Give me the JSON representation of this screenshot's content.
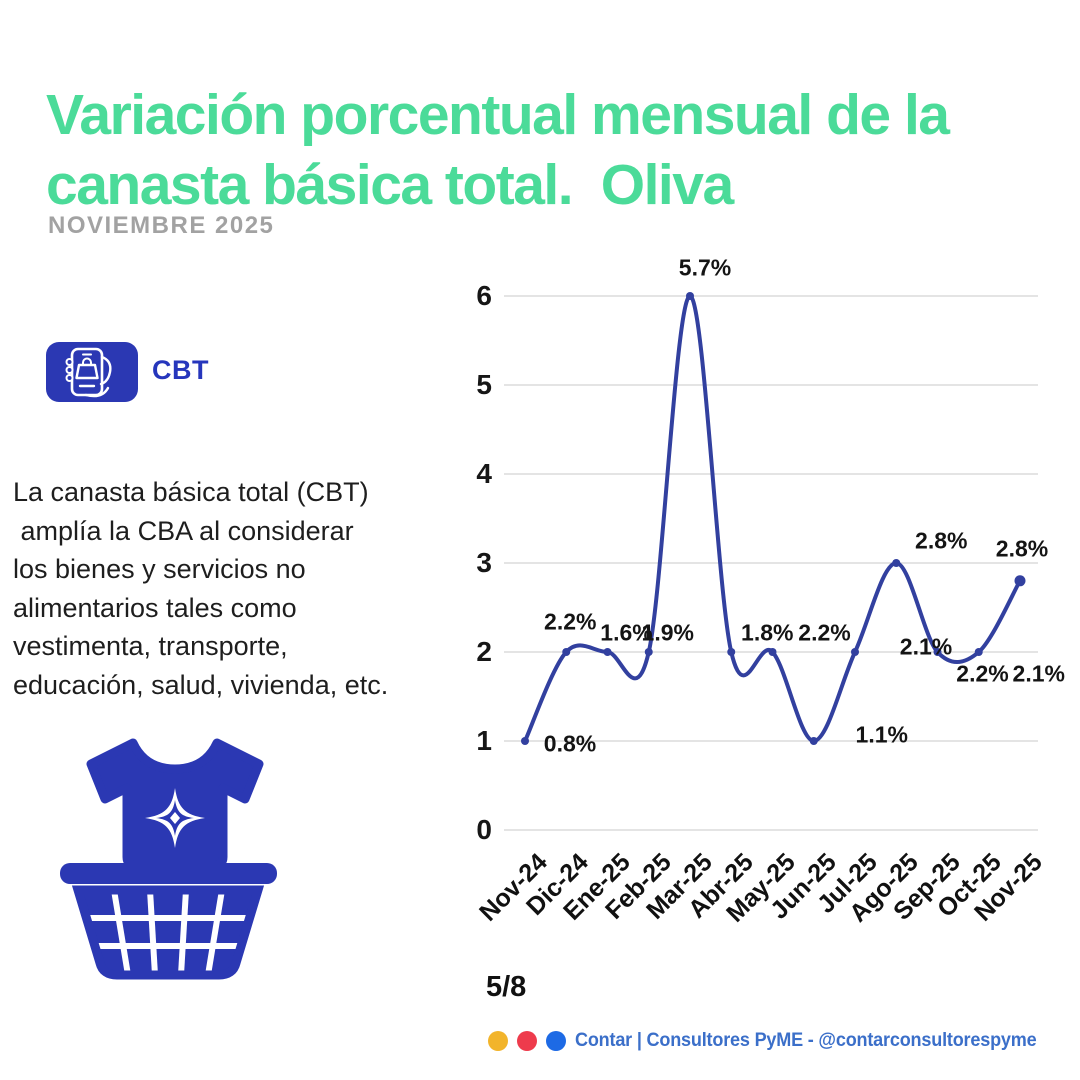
{
  "header": {
    "title": "Variación porcentual mensual de la\ncanasta básica total.  Oliva",
    "subtitle": "NOVIEMBRE 2025"
  },
  "cbt": {
    "label": "CBT",
    "description": "La canasta básica total (CBT)\n amplía la CBA al considerar\nlos bienes y servicios no\nalimentarios tales como\nvestimenta, transporte,\neducación, salud, vivienda, etc."
  },
  "footer": {
    "page_indicator": "5/8",
    "brand": "Contar | Consultores PyME - @contarconsultorespyme",
    "dot_colors": [
      "#F2B42B",
      "#EE3B4C",
      "#1D6AE5"
    ]
  },
  "colors": {
    "title_green": "#4BDB99",
    "subtitle_gray": "#A2A2A2",
    "icon_blue": "#2B38B3",
    "line_blue": "#32409F",
    "gridline_gray": "#DCDCDC",
    "brand_blue": "#3B6FC9"
  },
  "chart_data": {
    "type": "line",
    "title": "",
    "xlabel": "",
    "ylabel": "",
    "categories": [
      "Nov-24",
      "Dic-24",
      "Ene-25",
      "Feb-25",
      "Mar-25",
      "Abr-25",
      "May-25",
      "Jun-25",
      "Jul-25",
      "Ago-25",
      "Sep-25",
      "Oct-25",
      "Nov-25"
    ],
    "values": [
      0.8,
      2.2,
      1.6,
      1.9,
      5.7,
      1.8,
      2.2,
      1.1,
      2.1,
      2.8,
      2.2,
      2.1,
      2.8
    ],
    "point_labels": [
      "0.8%",
      "2.2%",
      "1.6%",
      "1.9%",
      "5.7%",
      "1.8%",
      "2.2%",
      "1.1%",
      "2.1%",
      "2.8%",
      "2.2%",
      "2.1%",
      "2.8%"
    ],
    "plotted_values_as_drawn": [
      1,
      2,
      2,
      2,
      6,
      2,
      2,
      1,
      2,
      3,
      2,
      2,
      2.8
    ],
    "ylim": [
      0,
      6
    ],
    "yticks": [
      0,
      1,
      2,
      3,
      4,
      5,
      6
    ],
    "grid": true,
    "legend": false
  }
}
